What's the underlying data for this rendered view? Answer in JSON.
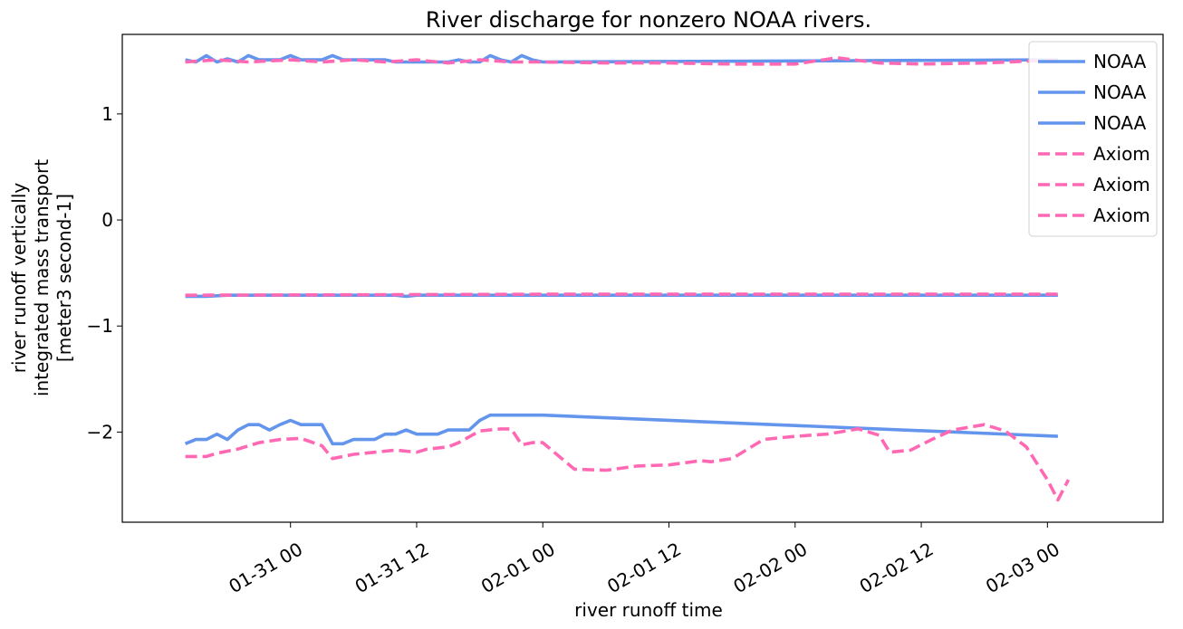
{
  "chart_data": {
    "type": "line",
    "title": "River discharge for nonzero NOAA rivers.",
    "xlabel": "river runoff time",
    "ylabel_lines": [
      "river runoff vertically",
      "integrated mass transport",
      "[meter3 second-1]"
    ],
    "x_range": [
      "2024-01-30 08:00",
      "2024-02-03 11:00"
    ],
    "ylim": [
      -2.85,
      1.75
    ],
    "y_ticks": [
      1,
      0,
      -1,
      -2
    ],
    "y_tick_labels": [
      "1",
      "0",
      "−1",
      "−2"
    ],
    "x_ticks": [
      "2024-01-31 00:00",
      "2024-01-31 12:00",
      "2024-02-01 00:00",
      "2024-02-01 12:00",
      "2024-02-02 00:00",
      "2024-02-02 12:00",
      "2024-02-03 00:00"
    ],
    "x_tick_labels": [
      "01-31 00",
      "01-31 12",
      "02-01 00",
      "02-01 12",
      "02-02 00",
      "02-02 12",
      "02-03 00"
    ],
    "grid": false,
    "legend_position": "top-right",
    "colors": {
      "NOAA": "#6495ed",
      "Axiom": "#ff69b4"
    },
    "series": [
      {
        "name": "NOAA",
        "style": "solid",
        "color": "#6495ed",
        "points": [
          [
            "2024-01-30 14:00",
            1.51
          ],
          [
            "2024-01-30 15:00",
            1.49
          ],
          [
            "2024-01-30 16:00",
            1.55
          ],
          [
            "2024-01-30 17:00",
            1.49
          ],
          [
            "2024-01-30 18:00",
            1.52
          ],
          [
            "2024-01-30 19:00",
            1.49
          ],
          [
            "2024-01-30 20:00",
            1.55
          ],
          [
            "2024-01-30 21:00",
            1.51
          ],
          [
            "2024-01-30 22:00",
            1.51
          ],
          [
            "2024-01-30 23:00",
            1.51
          ],
          [
            "2024-01-31 00:00",
            1.55
          ],
          [
            "2024-01-31 01:00",
            1.51
          ],
          [
            "2024-01-31 02:00",
            1.51
          ],
          [
            "2024-01-31 03:00",
            1.51
          ],
          [
            "2024-01-31 04:00",
            1.55
          ],
          [
            "2024-01-31 05:00",
            1.51
          ],
          [
            "2024-01-31 06:00",
            1.51
          ],
          [
            "2024-01-31 07:00",
            1.51
          ],
          [
            "2024-01-31 08:00",
            1.51
          ],
          [
            "2024-01-31 09:00",
            1.51
          ],
          [
            "2024-01-31 10:00",
            1.49
          ],
          [
            "2024-01-31 11:00",
            1.49
          ],
          [
            "2024-01-31 12:00",
            1.49
          ],
          [
            "2024-01-31 13:00",
            1.49
          ],
          [
            "2024-01-31 14:00",
            1.49
          ],
          [
            "2024-01-31 15:00",
            1.49
          ],
          [
            "2024-01-31 16:00",
            1.51
          ],
          [
            "2024-01-31 17:00",
            1.49
          ],
          [
            "2024-01-31 18:00",
            1.49
          ],
          [
            "2024-01-31 19:00",
            1.55
          ],
          [
            "2024-01-31 20:00",
            1.51
          ],
          [
            "2024-01-31 21:00",
            1.49
          ],
          [
            "2024-01-31 22:00",
            1.55
          ],
          [
            "2024-01-31 23:00",
            1.51
          ],
          [
            "2024-02-01 00:00",
            1.49
          ],
          [
            "2024-02-03 01:00",
            1.51
          ]
        ]
      },
      {
        "name": "NOAA",
        "style": "solid",
        "color": "#6495ed",
        "points": [
          [
            "2024-01-30 14:00",
            -0.72
          ],
          [
            "2024-01-30 16:00",
            -0.72
          ],
          [
            "2024-01-30 18:00",
            -0.71
          ],
          [
            "2024-01-30 20:00",
            -0.71
          ],
          [
            "2024-01-31 00:00",
            -0.71
          ],
          [
            "2024-01-31 04:00",
            -0.71
          ],
          [
            "2024-01-31 08:00",
            -0.71
          ],
          [
            "2024-01-31 10:00",
            -0.71
          ],
          [
            "2024-01-31 11:00",
            -0.72
          ],
          [
            "2024-01-31 12:00",
            -0.71
          ],
          [
            "2024-02-01 00:00",
            -0.71
          ],
          [
            "2024-02-03 01:00",
            -0.71
          ]
        ]
      },
      {
        "name": "NOAA",
        "style": "solid",
        "color": "#6495ed",
        "points": [
          [
            "2024-01-30 14:00",
            -2.11
          ],
          [
            "2024-01-30 15:00",
            -2.07
          ],
          [
            "2024-01-30 16:00",
            -2.07
          ],
          [
            "2024-01-30 17:00",
            -2.02
          ],
          [
            "2024-01-30 18:00",
            -2.07
          ],
          [
            "2024-01-30 19:00",
            -1.98
          ],
          [
            "2024-01-30 20:00",
            -1.93
          ],
          [
            "2024-01-30 21:00",
            -1.93
          ],
          [
            "2024-01-30 22:00",
            -1.98
          ],
          [
            "2024-01-30 23:00",
            -1.93
          ],
          [
            "2024-01-31 00:00",
            -1.89
          ],
          [
            "2024-01-31 01:00",
            -1.93
          ],
          [
            "2024-01-31 02:00",
            -1.93
          ],
          [
            "2024-01-31 03:00",
            -1.93
          ],
          [
            "2024-01-31 04:00",
            -2.11
          ],
          [
            "2024-01-31 05:00",
            -2.11
          ],
          [
            "2024-01-31 06:00",
            -2.07
          ],
          [
            "2024-01-31 07:00",
            -2.07
          ],
          [
            "2024-01-31 08:00",
            -2.07
          ],
          [
            "2024-01-31 09:00",
            -2.02
          ],
          [
            "2024-01-31 10:00",
            -2.02
          ],
          [
            "2024-01-31 11:00",
            -1.98
          ],
          [
            "2024-01-31 12:00",
            -2.02
          ],
          [
            "2024-01-31 13:00",
            -2.02
          ],
          [
            "2024-01-31 14:00",
            -2.02
          ],
          [
            "2024-01-31 15:00",
            -1.98
          ],
          [
            "2024-01-31 16:00",
            -1.98
          ],
          [
            "2024-01-31 17:00",
            -1.98
          ],
          [
            "2024-01-31 18:00",
            -1.89
          ],
          [
            "2024-01-31 19:00",
            -1.84
          ],
          [
            "2024-02-01 00:00",
            -1.84
          ],
          [
            "2024-02-03 01:00",
            -2.04
          ]
        ]
      },
      {
        "name": "Axiom",
        "style": "dashed",
        "color": "#ff69b4",
        "points": [
          [
            "2024-01-30 14:00",
            1.49
          ],
          [
            "2024-01-30 17:00",
            1.51
          ],
          [
            "2024-01-30 20:00",
            1.49
          ],
          [
            "2024-01-31 00:00",
            1.51
          ],
          [
            "2024-01-31 03:00",
            1.49
          ],
          [
            "2024-01-31 06:00",
            1.51
          ],
          [
            "2024-01-31 09:00",
            1.49
          ],
          [
            "2024-01-31 12:00",
            1.51
          ],
          [
            "2024-01-31 15:00",
            1.48
          ],
          [
            "2024-01-31 18:00",
            1.51
          ],
          [
            "2024-01-31 21:00",
            1.49
          ],
          [
            "2024-02-01 00:00",
            1.49
          ],
          [
            "2024-02-01 06:00",
            1.48
          ],
          [
            "2024-02-01 12:00",
            1.48
          ],
          [
            "2024-02-01 18:00",
            1.47
          ],
          [
            "2024-02-02 00:00",
            1.47
          ],
          [
            "2024-02-02 04:00",
            1.53
          ],
          [
            "2024-02-02 08:00",
            1.48
          ],
          [
            "2024-02-02 12:00",
            1.47
          ],
          [
            "2024-02-02 18:00",
            1.48
          ],
          [
            "2024-02-03 01:00",
            1.51
          ]
        ]
      },
      {
        "name": "Axiom",
        "style": "dashed",
        "color": "#ff69b4",
        "points": [
          [
            "2024-01-30 14:00",
            -0.71
          ],
          [
            "2024-02-01 00:00",
            -0.7
          ],
          [
            "2024-02-03 01:00",
            -0.7
          ]
        ]
      },
      {
        "name": "Axiom",
        "style": "dashed",
        "color": "#ff69b4",
        "points": [
          [
            "2024-01-30 14:00",
            -2.23
          ],
          [
            "2024-01-30 16:00",
            -2.23
          ],
          [
            "2024-01-30 17:00",
            -2.2
          ],
          [
            "2024-01-30 19:00",
            -2.16
          ],
          [
            "2024-01-30 21:00",
            -2.1
          ],
          [
            "2024-01-30 23:00",
            -2.07
          ],
          [
            "2024-01-31 01:00",
            -2.06
          ],
          [
            "2024-01-31 03:00",
            -2.13
          ],
          [
            "2024-01-31 04:00",
            -2.25
          ],
          [
            "2024-01-31 06:00",
            -2.21
          ],
          [
            "2024-01-31 08:00",
            -2.19
          ],
          [
            "2024-01-31 10:00",
            -2.17
          ],
          [
            "2024-01-31 12:00",
            -2.19
          ],
          [
            "2024-01-31 13:00",
            -2.16
          ],
          [
            "2024-01-31 15:00",
            -2.14
          ],
          [
            "2024-01-31 16:00",
            -2.1
          ],
          [
            "2024-01-31 18:00",
            -1.99
          ],
          [
            "2024-01-31 20:00",
            -1.97
          ],
          [
            "2024-01-31 21:00",
            -1.97
          ],
          [
            "2024-01-31 22:00",
            -2.12
          ],
          [
            "2024-01-31 23:00",
            -2.1
          ],
          [
            "2024-02-01 00:00",
            -2.1
          ],
          [
            "2024-02-01 03:00",
            -2.35
          ],
          [
            "2024-02-01 06:00",
            -2.36
          ],
          [
            "2024-02-01 09:00",
            -2.32
          ],
          [
            "2024-02-01 12:00",
            -2.31
          ],
          [
            "2024-02-01 15:00",
            -2.27
          ],
          [
            "2024-02-01 16:00",
            -2.28
          ],
          [
            "2024-02-01 18:00",
            -2.25
          ],
          [
            "2024-02-01 21:00",
            -2.07
          ],
          [
            "2024-02-02 00:00",
            -2.04
          ],
          [
            "2024-02-02 03:00",
            -2.02
          ],
          [
            "2024-02-02 06:00",
            -1.97
          ],
          [
            "2024-02-02 08:00",
            -2.03
          ],
          [
            "2024-02-02 09:00",
            -2.19
          ],
          [
            "2024-02-02 11:00",
            -2.17
          ],
          [
            "2024-02-02 13:00",
            -2.07
          ],
          [
            "2024-02-02 15:00",
            -1.98
          ],
          [
            "2024-02-02 18:00",
            -1.93
          ],
          [
            "2024-02-02 20:00",
            -1.99
          ],
          [
            "2024-02-02 22:00",
            -2.14
          ],
          [
            "2024-02-03 00:00",
            -2.45
          ],
          [
            "2024-02-03 01:00",
            -2.64
          ],
          [
            "2024-02-03 02:00",
            -2.45
          ]
        ]
      }
    ]
  }
}
